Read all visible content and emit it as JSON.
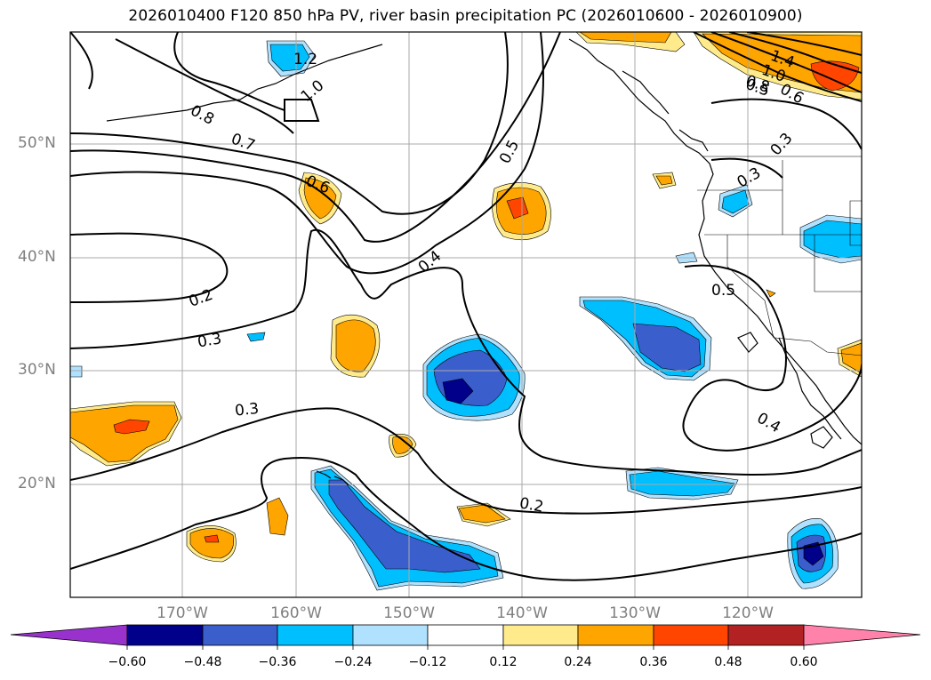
{
  "title": "2026010400 F120 850 hPa PV, river basin precipitation PC (2026010600 - 2026010900)",
  "lat_labels": [
    "50°N",
    "40°N",
    "30°N",
    "20°N"
  ],
  "lon_labels": [
    "170°W",
    "160°W",
    "150°W",
    "140°W",
    "130°W",
    "120°W"
  ],
  "contour_labels": [
    "1.2",
    "1.0",
    "0.8",
    "0.7",
    "0.6",
    "0.5",
    "0.4",
    "0.3",
    "0.2",
    "0.3",
    "0.5",
    "0.4",
    "0.2",
    "0.3",
    "1.4",
    "1.0",
    "0.8",
    "0.6",
    "0.3",
    "0.5"
  ],
  "colorbar": {
    "ticks": [
      "−0.60",
      "−0.48",
      "−0.36",
      "−0.24",
      "−0.12",
      "0.12",
      "0.24",
      "0.36",
      "0.48",
      "0.60"
    ],
    "colors": [
      "#9932cc",
      "#00008b",
      "#3a5fcd",
      "#00bfff",
      "#b0e2ff",
      "#ffffff",
      "#ffeb8b",
      "#ffa500",
      "#ff4500",
      "#b22222",
      "#ff82ab"
    ]
  }
}
